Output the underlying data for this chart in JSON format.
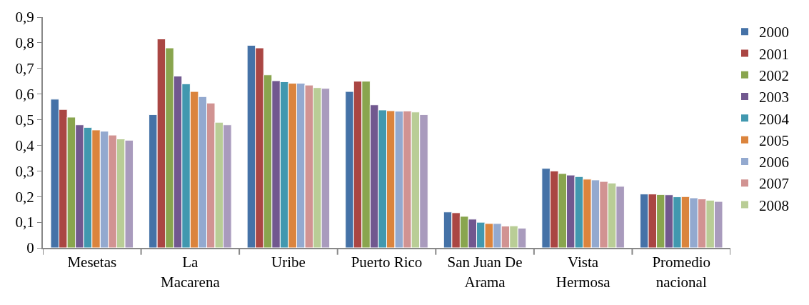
{
  "chart_data": {
    "type": "bar",
    "categories": [
      "Mesetas",
      "La\nMacarena",
      "Uribe",
      "Puerto Rico",
      "San Juan De\nArama",
      "Vista\nHermosa",
      "Promedio\nnacional"
    ],
    "series": [
      {
        "name": "2000",
        "color": "#4572a7",
        "values": [
          0.58,
          0.52,
          0.79,
          0.61,
          0.14,
          0.31,
          0.21
        ]
      },
      {
        "name": "2001",
        "color": "#aa4643",
        "values": [
          0.54,
          0.815,
          0.78,
          0.65,
          0.137,
          0.3,
          0.21
        ]
      },
      {
        "name": "2002",
        "color": "#89a54e",
        "values": [
          0.51,
          0.78,
          0.675,
          0.65,
          0.123,
          0.29,
          0.208
        ]
      },
      {
        "name": "2003",
        "color": "#71588f",
        "values": [
          0.48,
          0.67,
          0.652,
          0.558,
          0.112,
          0.284,
          0.207
        ]
      },
      {
        "name": "2004",
        "color": "#4198af",
        "values": [
          0.47,
          0.64,
          0.648,
          0.538,
          0.1,
          0.278,
          0.199
        ]
      },
      {
        "name": "2005",
        "color": "#db843d",
        "values": [
          0.46,
          0.61,
          0.642,
          0.535,
          0.095,
          0.268,
          0.2
        ]
      },
      {
        "name": "2006",
        "color": "#93a9cf",
        "values": [
          0.455,
          0.59,
          0.642,
          0.533,
          0.095,
          0.265,
          0.195
        ]
      },
      {
        "name": "2007",
        "color": "#d19392",
        "values": [
          0.44,
          0.565,
          0.635,
          0.534,
          0.085,
          0.259,
          0.191
        ]
      },
      {
        "name": "2008",
        "color": "#b9cd96",
        "values": [
          0.425,
          0.49,
          0.625,
          0.53,
          0.086,
          0.253,
          0.186
        ]
      },
      {
        "color": "#a99bbd",
        "values": [
          0.42,
          0.48,
          0.622,
          0.52,
          0.077,
          0.24,
          0.181
        ]
      }
    ],
    "ylim": [
      0,
      0.9
    ],
    "yticks": [
      0,
      {
        "value": 0.1,
        "label": "0,1"
      },
      {
        "value": 0.2,
        "label": "0,2"
      },
      {
        "value": 0.3,
        "label": "0,3"
      },
      {
        "value": 0.4,
        "label": "0,4"
      },
      {
        "value": 0.5,
        "label": "0,5"
      },
      {
        "value": 0.6,
        "label": "0,6"
      },
      {
        "value": 0.7,
        "label": "0,7"
      },
      {
        "value": 0.8,
        "label": "0,8"
      },
      {
        "value": 0.9,
        "label": "0,9"
      }
    ],
    "legend": "top right"
  }
}
